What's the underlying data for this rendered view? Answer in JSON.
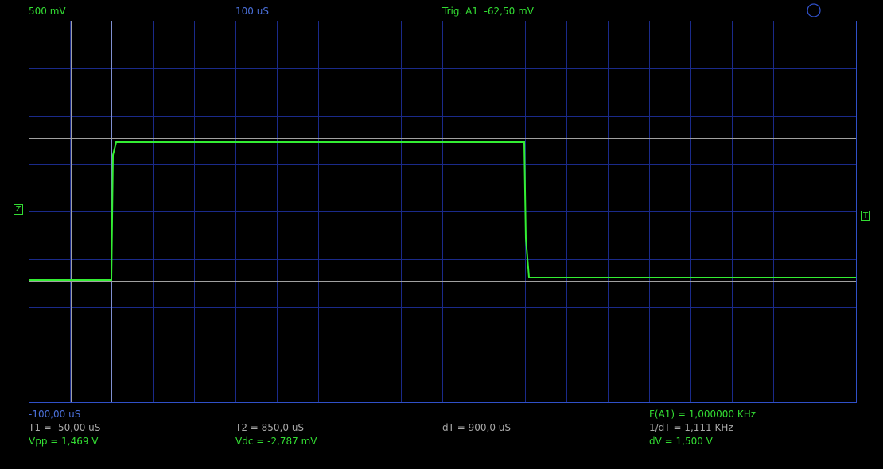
{
  "header": {
    "volts_per_div": "500 mV",
    "time_per_div": "100 uS",
    "trigger": "Trig. A1  -62,50 mV"
  },
  "markers": {
    "ground": "Z",
    "trigger": "T"
  },
  "footer": {
    "start_time": "-100,00 uS",
    "frequency": "F(A1) = 1,000000 KHz",
    "t1": "T1 = -50,00 uS",
    "t2": "T2 = 850,0 uS",
    "dt": "dT = 900,0 uS",
    "inv_dt": "1/dT = 1,111 KHz",
    "vpp": "Vpp = 1,469 V",
    "vdc": "Vdc = -2,787 mV",
    "dv": "dV = 1,500 V"
  }
}
